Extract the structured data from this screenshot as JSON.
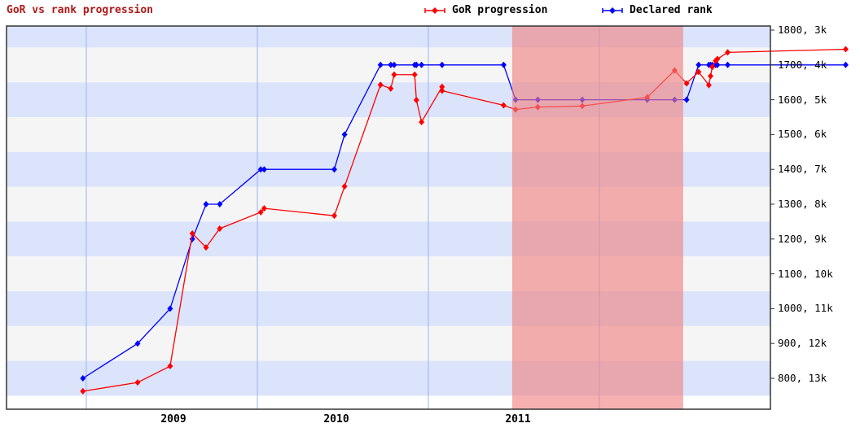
{
  "title": "GoR vs rank progression",
  "legend": [
    {
      "label": "GoR progression",
      "color": "#ff0000"
    },
    {
      "label": "Declared rank",
      "color": "#0000ff"
    }
  ],
  "colors": {
    "band_a": "#dbe4fb",
    "band_b": "#f5f5f5",
    "year_line": "#a8bdf5",
    "highlight": "#f08080",
    "title": "#b01818"
  },
  "chart_data": {
    "type": "line",
    "title": "GoR vs rank progression",
    "xlabel": "",
    "ylabel": "",
    "x_tick_labels": [
      "2009",
      "2010",
      "2011"
    ],
    "y_tick_labels": [
      "1800, 3k",
      "1700, 4k",
      "1600, 5k",
      "1500, 6k",
      "1400, 7k",
      "1300, 8k",
      "1200, 9k",
      "1100, 10k",
      "1000, 11k",
      "900, 12k",
      "800, 13k"
    ],
    "y_ticks": [
      1800,
      1700,
      1600,
      1500,
      1400,
      1300,
      1200,
      1100,
      1000,
      900,
      800
    ],
    "ylim": [
      717,
      1811
    ],
    "xlim": [
      2008.47,
      2012.94
    ],
    "grid": "alternating horizontal bands",
    "legend_position": "top-right",
    "highlight_region": {
      "x_start": 2010.99,
      "x_end": 2011.99
    },
    "series": [
      {
        "name": "GoR progression",
        "color": "#ff0000",
        "points": [
          [
            2008.48,
            763
          ],
          [
            2008.8,
            788
          ],
          [
            2008.99,
            835
          ],
          [
            2009.12,
            1216
          ],
          [
            2009.2,
            1176
          ],
          [
            2009.28,
            1230
          ],
          [
            2009.52,
            1277
          ],
          [
            2009.54,
            1288
          ],
          [
            2009.95,
            1267
          ],
          [
            2010.01,
            1351
          ],
          [
            2010.22,
            1643
          ],
          [
            2010.28,
            1632
          ],
          [
            2010.3,
            1672
          ],
          [
            2010.42,
            1672
          ],
          [
            2010.43,
            1599
          ],
          [
            2010.46,
            1536
          ],
          [
            2010.58,
            1637
          ],
          [
            2010.58,
            1626
          ],
          [
            2010.94,
            1584
          ],
          [
            2011.01,
            1572
          ],
          [
            2011.14,
            1579
          ],
          [
            2011.4,
            1582
          ],
          [
            2011.78,
            1607
          ],
          [
            2011.94,
            1684
          ],
          [
            2012.01,
            1647
          ],
          [
            2012.08,
            1680
          ],
          [
            2012.14,
            1642
          ],
          [
            2012.15,
            1668
          ],
          [
            2012.16,
            1694
          ],
          [
            2012.18,
            1712
          ],
          [
            2012.19,
            1717
          ],
          [
            2012.25,
            1736
          ],
          [
            2012.94,
            1745
          ]
        ]
      },
      {
        "name": "Declared rank",
        "color": "#0000ff",
        "points": [
          [
            2008.48,
            800
          ],
          [
            2008.8,
            900
          ],
          [
            2008.99,
            1000
          ],
          [
            2009.12,
            1200
          ],
          [
            2009.2,
            1300
          ],
          [
            2009.28,
            1300
          ],
          [
            2009.52,
            1400
          ],
          [
            2009.54,
            1400
          ],
          [
            2009.95,
            1400
          ],
          [
            2010.01,
            1500
          ],
          [
            2010.22,
            1700
          ],
          [
            2010.28,
            1700
          ],
          [
            2010.3,
            1700
          ],
          [
            2010.42,
            1700
          ],
          [
            2010.43,
            1700
          ],
          [
            2010.46,
            1700
          ],
          [
            2010.58,
            1700
          ],
          [
            2010.94,
            1700
          ],
          [
            2011.01,
            1600
          ],
          [
            2011.14,
            1600
          ],
          [
            2011.4,
            1600
          ],
          [
            2011.78,
            1600
          ],
          [
            2011.94,
            1600
          ],
          [
            2012.01,
            1600
          ],
          [
            2012.08,
            1700
          ],
          [
            2012.14,
            1700
          ],
          [
            2012.15,
            1700
          ],
          [
            2012.16,
            1700
          ],
          [
            2012.18,
            1700
          ],
          [
            2012.19,
            1700
          ],
          [
            2012.25,
            1700
          ],
          [
            2012.94,
            1700
          ]
        ]
      }
    ]
  }
}
